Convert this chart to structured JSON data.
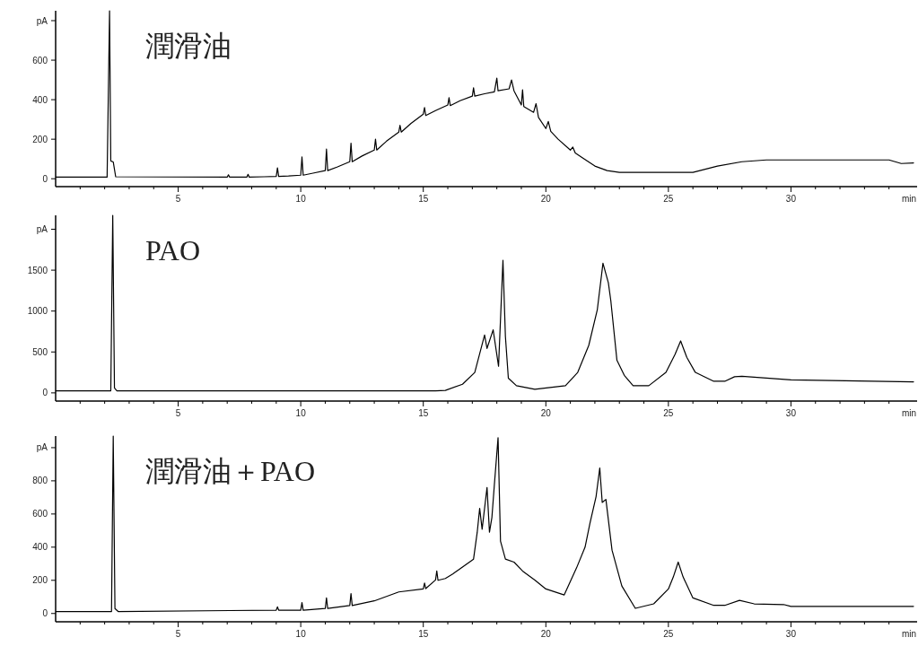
{
  "chart_data": [
    {
      "type": "line",
      "title": "潤滑油",
      "xlabel": "min",
      "xlim": [
        0,
        35
      ],
      "xticks": [
        {
          "value": 1,
          "label": null
        },
        {
          "value": 2,
          "label": null
        },
        {
          "value": 3,
          "label": null
        },
        {
          "value": 4,
          "label": null
        },
        5,
        {
          "value": 6,
          "label": null
        },
        {
          "value": 7,
          "label": null
        },
        {
          "value": 8,
          "label": null
        },
        {
          "value": 9,
          "label": null
        },
        10,
        {
          "value": 11,
          "label": null
        },
        {
          "value": 12,
          "label": null
        },
        {
          "value": 13,
          "label": null
        },
        {
          "value": 14,
          "label": null
        },
        15,
        {
          "value": 16,
          "label": null
        },
        {
          "value": 17,
          "label": null
        },
        {
          "value": 18,
          "label": null
        },
        {
          "value": 19,
          "label": null
        },
        20,
        {
          "value": 21,
          "label": null
        },
        {
          "value": 22,
          "label": null
        },
        {
          "value": 23,
          "label": null
        },
        {
          "value": 24,
          "label": null
        },
        25,
        {
          "value": 26,
          "label": null
        },
        {
          "value": 27,
          "label": null
        },
        {
          "value": 28,
          "label": null
        },
        {
          "value": 29,
          "label": null
        },
        30,
        {
          "value": 31,
          "label": null
        },
        {
          "value": 32,
          "label": null
        },
        {
          "value": 33,
          "label": null
        },
        {
          "value": 34,
          "label": null
        }
      ],
      "ylim": [
        -40,
        850
      ],
      "yticks": [
        0,
        200,
        400,
        600,
        {
          "value": 800,
          "label": "pA"
        }
      ],
      "series": [
        {
          "color": "#000000",
          "x": [
            0,
            2.1,
            2.2,
            2.25,
            2.35,
            2.45,
            7,
            7.05,
            7.1,
            7.8,
            7.85,
            7.9,
            8.5,
            9,
            9.05,
            9.1,
            9.5,
            10,
            10.05,
            10.1,
            10.5,
            11,
            11.05,
            11.1,
            11.5,
            12,
            12.05,
            12.1,
            12.5,
            13,
            13.05,
            13.1,
            13.5,
            14,
            14.05,
            14.1,
            14.5,
            15,
            15.05,
            15.1,
            15.5,
            16,
            16.05,
            16.1,
            16.5,
            17,
            17.05,
            17.1,
            17.5,
            17.9,
            18,
            18.05,
            18.5,
            18.6,
            18.7,
            19,
            19.05,
            19.1,
            19.5,
            19.6,
            19.7,
            20,
            20.1,
            20.2,
            20.5,
            21,
            21.1,
            21.2,
            21.5,
            22,
            22.5,
            23,
            26,
            27,
            28,
            29,
            34,
            34.5,
            35
          ],
          "values": [
            8,
            8,
            850,
            90,
            85,
            10,
            8,
            20,
            8,
            8,
            22,
            8,
            10,
            12,
            55,
            12,
            14,
            18,
            110,
            18,
            28,
            41,
            150,
            41,
            60,
            86,
            180,
            86,
            115,
            145,
            200,
            145,
            190,
            236,
            270,
            236,
            280,
            327,
            360,
            320,
            345,
            373,
            410,
            370,
            395,
            418,
            460,
            418,
            430,
            440,
            509,
            445,
            455,
            500,
            445,
            373,
            450,
            365,
            336,
            380,
            310,
            254,
            290,
            240,
            200,
            145,
            160,
            130,
            105,
            64,
            41,
            32,
            32,
            64,
            86,
            95,
            95,
            77,
            80
          ]
        }
      ]
    },
    {
      "type": "line",
      "title": "PAO",
      "xlabel": "min",
      "xlim": [
        0,
        35
      ],
      "xticks": [
        {
          "value": 1,
          "label": null
        },
        {
          "value": 2,
          "label": null
        },
        {
          "value": 3,
          "label": null
        },
        {
          "value": 4,
          "label": null
        },
        5,
        {
          "value": 6,
          "label": null
        },
        {
          "value": 7,
          "label": null
        },
        {
          "value": 8,
          "label": null
        },
        {
          "value": 9,
          "label": null
        },
        10,
        {
          "value": 11,
          "label": null
        },
        {
          "value": 12,
          "label": null
        },
        {
          "value": 13,
          "label": null
        },
        {
          "value": 14,
          "label": null
        },
        15,
        {
          "value": 16,
          "label": null
        },
        {
          "value": 17,
          "label": null
        },
        {
          "value": 18,
          "label": null
        },
        {
          "value": 19,
          "label": null
        },
        20,
        {
          "value": 21,
          "label": null
        },
        {
          "value": 22,
          "label": null
        },
        {
          "value": 23,
          "label": null
        },
        {
          "value": 24,
          "label": null
        },
        25,
        {
          "value": 26,
          "label": null
        },
        {
          "value": 27,
          "label": null
        },
        {
          "value": 28,
          "label": null
        },
        {
          "value": 29,
          "label": null
        },
        30,
        {
          "value": 31,
          "label": null
        },
        {
          "value": 32,
          "label": null
        },
        {
          "value": 33,
          "label": null
        },
        {
          "value": 34,
          "label": null
        }
      ],
      "ylim": [
        -100,
        2170
      ],
      "yticks": [
        0,
        500,
        1000,
        1500,
        {
          "value": 2000,
          "label": "pA"
        }
      ],
      "series": [
        {
          "color": "#000000",
          "x": [
            0,
            2.25,
            2.33,
            2.4,
            2.5,
            15.5,
            15.9,
            16.6,
            17.1,
            17.5,
            17.6,
            17.85,
            18.07,
            18.25,
            18.35,
            18.47,
            18.8,
            19.55,
            20.8,
            21.3,
            21.75,
            22.1,
            22.33,
            22.55,
            22.65,
            22.9,
            23.2,
            23.56,
            24.2,
            24.9,
            25.27,
            25.5,
            25.75,
            26.1,
            26.85,
            27.3,
            27.7,
            28,
            30,
            35
          ],
          "values": [
            25,
            25,
            2170,
            60,
            25,
            25,
            30,
            106,
            250,
            708,
            544,
            770,
            325,
            1620,
            690,
            180,
            88,
            44,
            88,
            250,
            580,
            1018,
            1584,
            1347,
            1128,
            398,
            215,
            88,
            88,
            250,
            470,
            635,
            434,
            250,
            142,
            142,
            197,
            204,
            160,
            135
          ]
        }
      ]
    },
    {
      "type": "line",
      "title": "潤滑油＋PAO",
      "xlabel": "min",
      "xlim": [
        0,
        35
      ],
      "xticks": [
        {
          "value": 1,
          "label": null
        },
        {
          "value": 2,
          "label": null
        },
        {
          "value": 3,
          "label": null
        },
        {
          "value": 4,
          "label": null
        },
        5,
        {
          "value": 6,
          "label": null
        },
        {
          "value": 7,
          "label": null
        },
        {
          "value": 8,
          "label": null
        },
        {
          "value": 9,
          "label": null
        },
        10,
        {
          "value": 11,
          "label": null
        },
        {
          "value": 12,
          "label": null
        },
        {
          "value": 13,
          "label": null
        },
        {
          "value": 14,
          "label": null
        },
        15,
        {
          "value": 16,
          "label": null
        },
        {
          "value": 17,
          "label": null
        },
        {
          "value": 18,
          "label": null
        },
        {
          "value": 19,
          "label": null
        },
        20,
        {
          "value": 21,
          "label": null
        },
        {
          "value": 22,
          "label": null
        },
        {
          "value": 23,
          "label": null
        },
        {
          "value": 24,
          "label": null
        },
        25,
        {
          "value": 26,
          "label": null
        },
        {
          "value": 27,
          "label": null
        },
        {
          "value": 28,
          "label": null
        },
        {
          "value": 29,
          "label": null
        },
        30,
        {
          "value": 31,
          "label": null
        },
        {
          "value": 32,
          "label": null
        },
        {
          "value": 33,
          "label": null
        },
        {
          "value": 34,
          "label": null
        }
      ],
      "ylim": [
        -50,
        1070
      ],
      "yticks": [
        0,
        200,
        400,
        600,
        800,
        {
          "value": 1000,
          "label": "pA"
        }
      ],
      "series": [
        {
          "color": "#000000",
          "x": [
            0,
            2.28,
            2.35,
            2.42,
            2.55,
            9,
            9.05,
            9.1,
            10,
            10.05,
            10.1,
            11,
            11.05,
            11.1,
            12,
            12.05,
            12.1,
            13,
            14,
            15,
            15.05,
            15.1,
            15.5,
            15.55,
            15.6,
            15.9,
            16.2,
            17.05,
            17.2,
            17.3,
            17.4,
            17.6,
            17.7,
            17.8,
            17.9,
            18.05,
            18.15,
            18.35,
            18.7,
            19.05,
            19.55,
            20,
            20.75,
            21.25,
            21.6,
            21.8,
            22.05,
            22.2,
            22.3,
            22.45,
            22.7,
            23.1,
            23.65,
            24.4,
            25,
            25.2,
            25.4,
            25.6,
            26,
            26.85,
            27.3,
            27.9,
            28.5,
            29.7,
            30,
            35
          ],
          "values": [
            12,
            12,
            1070,
            30,
            12,
            20,
            40,
            20,
            20,
            66,
            20,
            30,
            94,
            30,
            48,
            120,
            48,
            76,
            130,
            148,
            184,
            150,
            202,
            256,
            200,
            211,
            238,
            328,
            490,
            634,
            508,
            760,
            490,
            580,
            778,
            1060,
            436,
            328,
            310,
            256,
            202,
            148,
            112,
            274,
            400,
            544,
            706,
            877,
            670,
            688,
            382,
            166,
            31,
            58,
            148,
            220,
            310,
            220,
            94,
            49,
            49,
            79,
            58,
            54,
            43,
            43
          ]
        }
      ]
    }
  ]
}
